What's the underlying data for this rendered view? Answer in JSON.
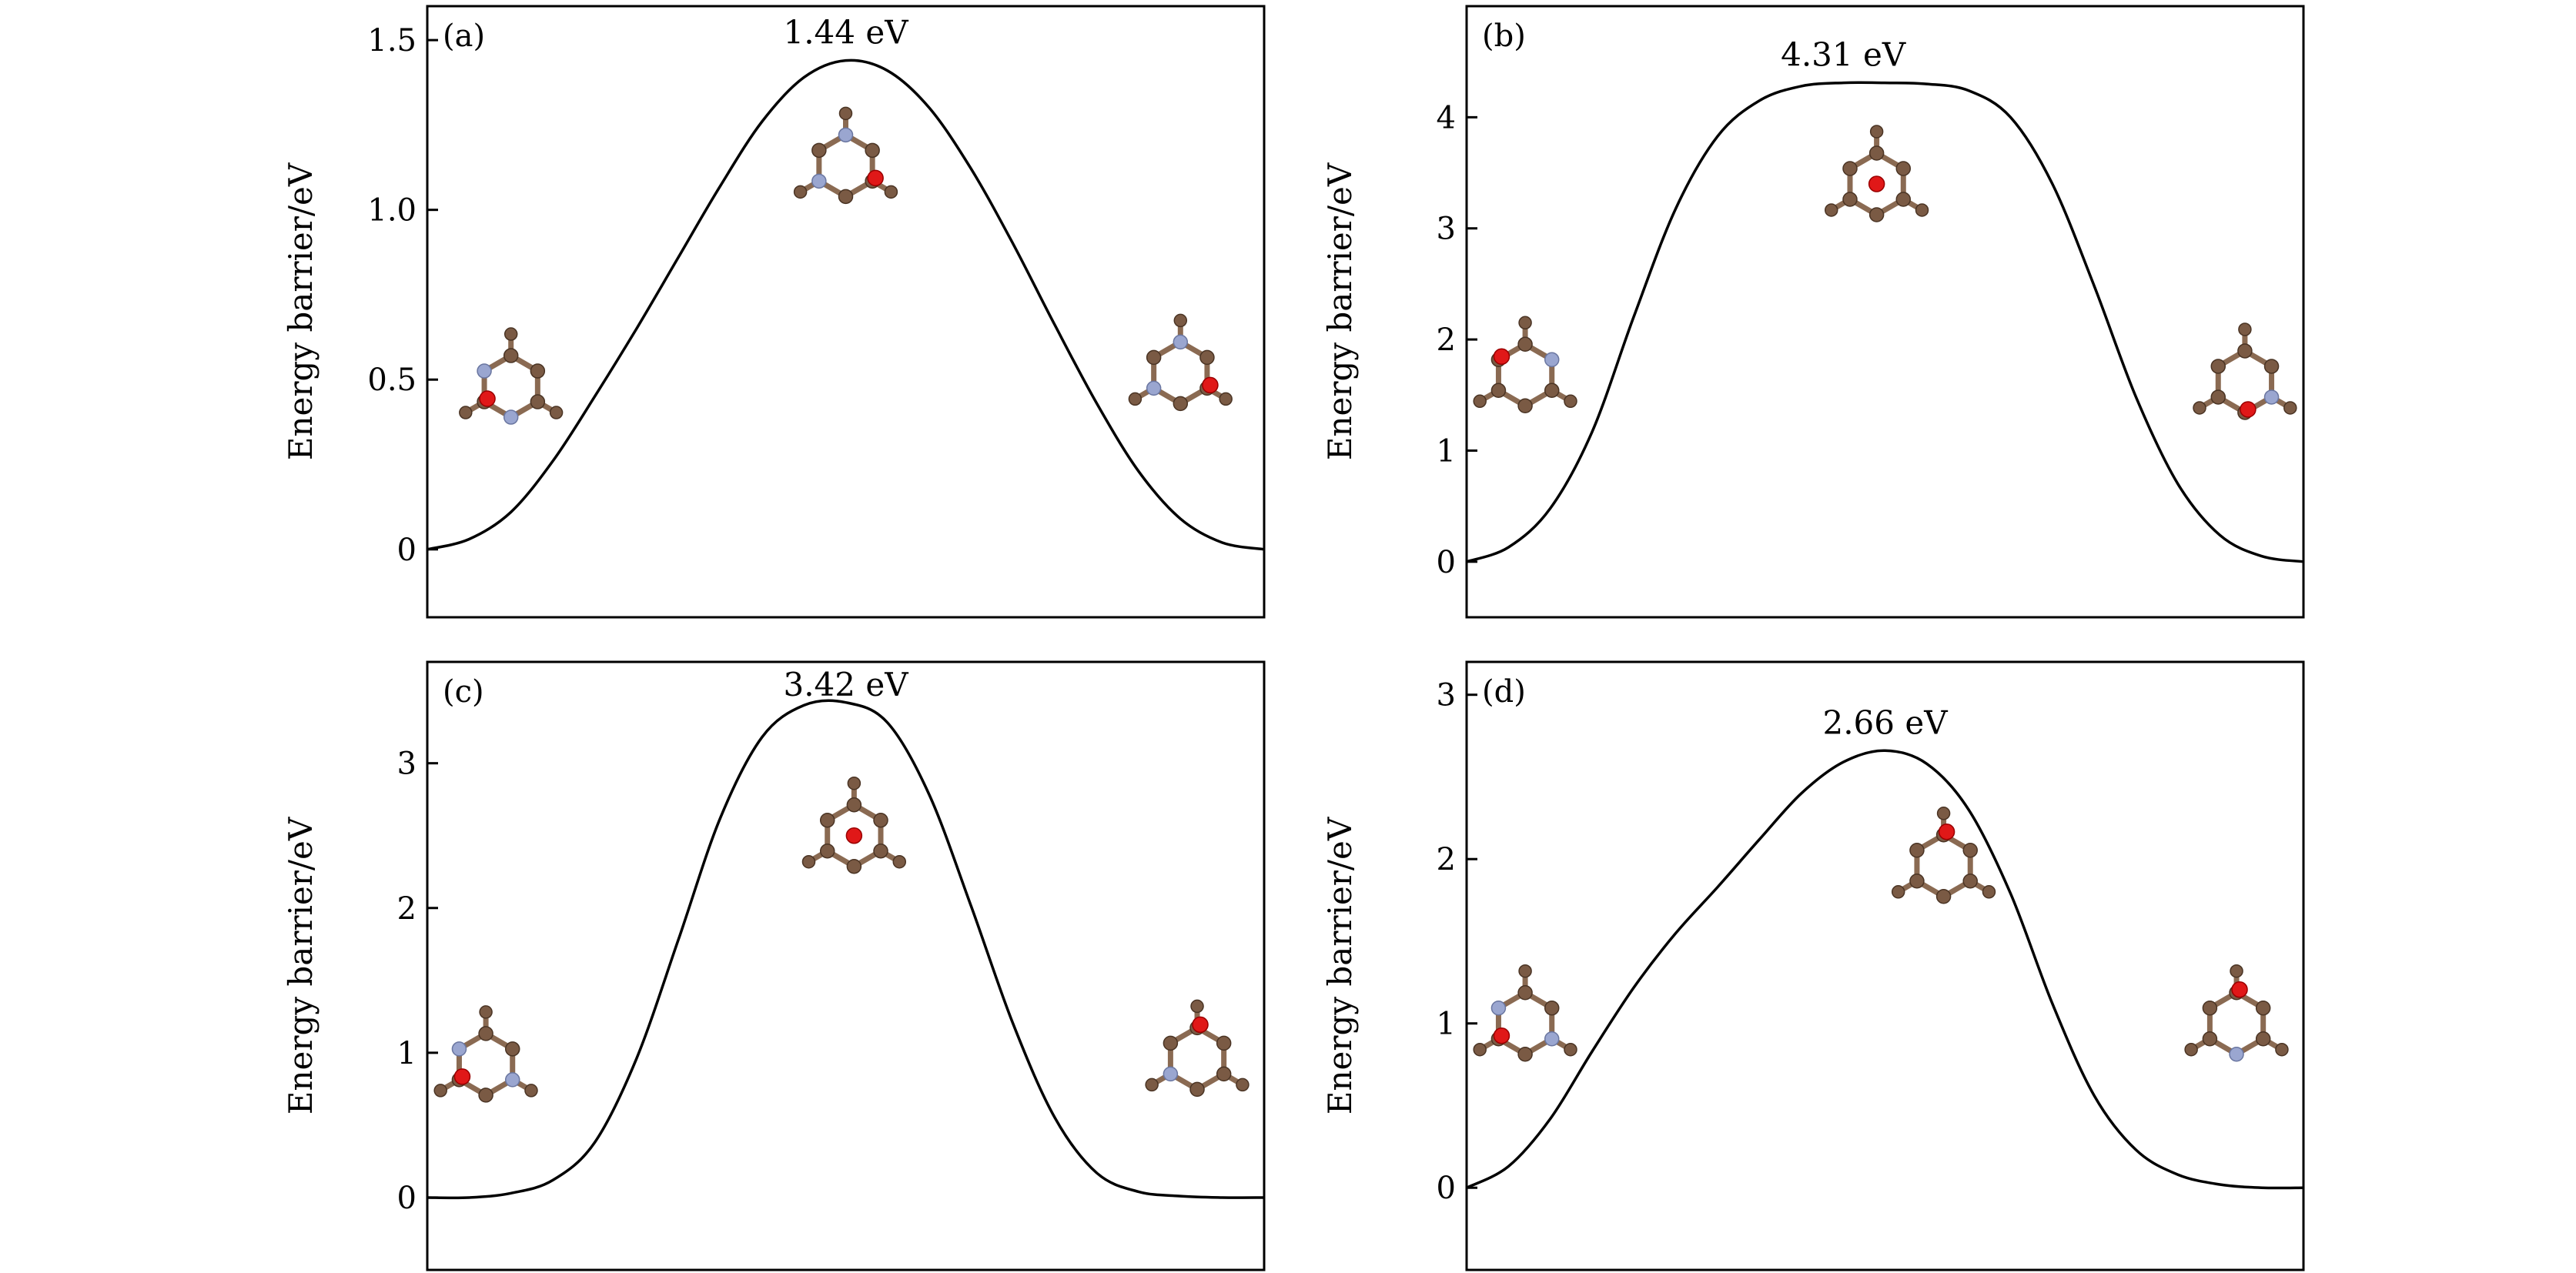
{
  "chart_data": [
    {
      "type": "line",
      "panel_label": "(a)",
      "annotation": "1.44 eV",
      "ylabel": "Energy barrier/eV",
      "yticks": [
        "0",
        "0.5",
        "1.0",
        "1.5"
      ],
      "ylim": [
        -0.2,
        1.6
      ],
      "x": [
        0,
        0.05,
        0.1,
        0.15,
        0.2,
        0.25,
        0.3,
        0.35,
        0.4,
        0.45,
        0.5,
        0.55,
        0.6,
        0.65,
        0.7,
        0.75,
        0.8,
        0.85,
        0.9,
        0.95,
        1.0
      ],
      "y": [
        0.0,
        0.03,
        0.11,
        0.26,
        0.45,
        0.65,
        0.86,
        1.07,
        1.26,
        1.39,
        1.44,
        1.41,
        1.3,
        1.12,
        0.9,
        0.66,
        0.43,
        0.23,
        0.09,
        0.02,
        0.0
      ],
      "structures": [
        {
          "x": 0.1,
          "y": 0.48,
          "oxygen": 2,
          "nitrogen": [
            1,
            3
          ]
        },
        {
          "x": 0.5,
          "y": 1.13,
          "oxygen": 4,
          "nitrogen": [
            0,
            2
          ]
        },
        {
          "x": 0.9,
          "y": 0.52,
          "oxygen": 4,
          "nitrogen": [
            0,
            2
          ]
        }
      ]
    },
    {
      "type": "line",
      "panel_label": "(b)",
      "annotation": "4.31 eV",
      "ylabel": "Energy barrier/eV",
      "yticks": [
        "0",
        "1",
        "2",
        "3",
        "4"
      ],
      "ylim": [
        -0.5,
        5.0
      ],
      "x": [
        0,
        0.05,
        0.1,
        0.15,
        0.2,
        0.25,
        0.3,
        0.35,
        0.4,
        0.45,
        0.5,
        0.55,
        0.6,
        0.65,
        0.7,
        0.75,
        0.8,
        0.85,
        0.9,
        0.95,
        1.0
      ],
      "y": [
        0.0,
        0.13,
        0.48,
        1.17,
        2.21,
        3.18,
        3.83,
        4.15,
        4.28,
        4.31,
        4.31,
        4.3,
        4.24,
        4.0,
        3.4,
        2.48,
        1.48,
        0.7,
        0.24,
        0.05,
        0.0
      ],
      "structures": [
        {
          "x": 0.07,
          "y": 1.68,
          "oxygen": 1,
          "nitrogen": [
            5
          ]
        },
        {
          "x": 0.49,
          "y": 3.4,
          "oxygen": 6,
          "nitrogen": []
        },
        {
          "x": 0.93,
          "y": 1.62,
          "oxygen": 3,
          "nitrogen": [
            4
          ]
        }
      ]
    },
    {
      "type": "line",
      "panel_label": "(c)",
      "annotation": "3.42 eV",
      "ylabel": "Energy barrier/eV",
      "yticks": [
        "0",
        "1",
        "2",
        "3"
      ],
      "ylim": [
        -0.5,
        3.7
      ],
      "x": [
        0,
        0.05,
        0.1,
        0.15,
        0.2,
        0.25,
        0.3,
        0.35,
        0.4,
        0.45,
        0.5,
        0.55,
        0.6,
        0.65,
        0.7,
        0.75,
        0.8,
        0.85,
        0.9,
        0.95,
        1.0
      ],
      "y": [
        0.0,
        0.0,
        0.03,
        0.12,
        0.38,
        0.96,
        1.78,
        2.62,
        3.18,
        3.4,
        3.42,
        3.28,
        2.78,
        2.01,
        1.2,
        0.55,
        0.17,
        0.04,
        0.01,
        0.0,
        0.0
      ],
      "structures": [
        {
          "x": 0.07,
          "y": 0.92,
          "oxygen": 2,
          "nitrogen": [
            1,
            4
          ]
        },
        {
          "x": 0.51,
          "y": 2.5,
          "oxygen": 6,
          "nitrogen": []
        },
        {
          "x": 0.92,
          "y": 0.96,
          "oxygen": 0,
          "nitrogen": [
            2
          ]
        }
      ]
    },
    {
      "type": "line",
      "panel_label": "(d)",
      "annotation": "2.66 eV",
      "ylabel": "Energy barrier/eV",
      "yticks": [
        "0",
        "1",
        "2",
        "3"
      ],
      "ylim": [
        -0.5,
        3.2
      ],
      "x": [
        0,
        0.05,
        0.1,
        0.15,
        0.2,
        0.25,
        0.3,
        0.35,
        0.4,
        0.45,
        0.5,
        0.55,
        0.6,
        0.65,
        0.7,
        0.75,
        0.8,
        0.85,
        0.9,
        0.95,
        1.0
      ],
      "y": [
        0.0,
        0.13,
        0.42,
        0.83,
        1.22,
        1.55,
        1.83,
        2.12,
        2.4,
        2.59,
        2.66,
        2.58,
        2.3,
        1.79,
        1.12,
        0.56,
        0.23,
        0.08,
        0.02,
        0.0,
        0.0
      ],
      "structures": [
        {
          "x": 0.07,
          "y": 1.0,
          "oxygen": 2,
          "nitrogen": [
            1,
            4
          ]
        },
        {
          "x": 0.57,
          "y": 1.96,
          "oxygen": 0,
          "nitrogen": []
        },
        {
          "x": 0.92,
          "y": 1.0,
          "oxygen": 0,
          "nitrogen": [
            3
          ]
        }
      ]
    }
  ]
}
